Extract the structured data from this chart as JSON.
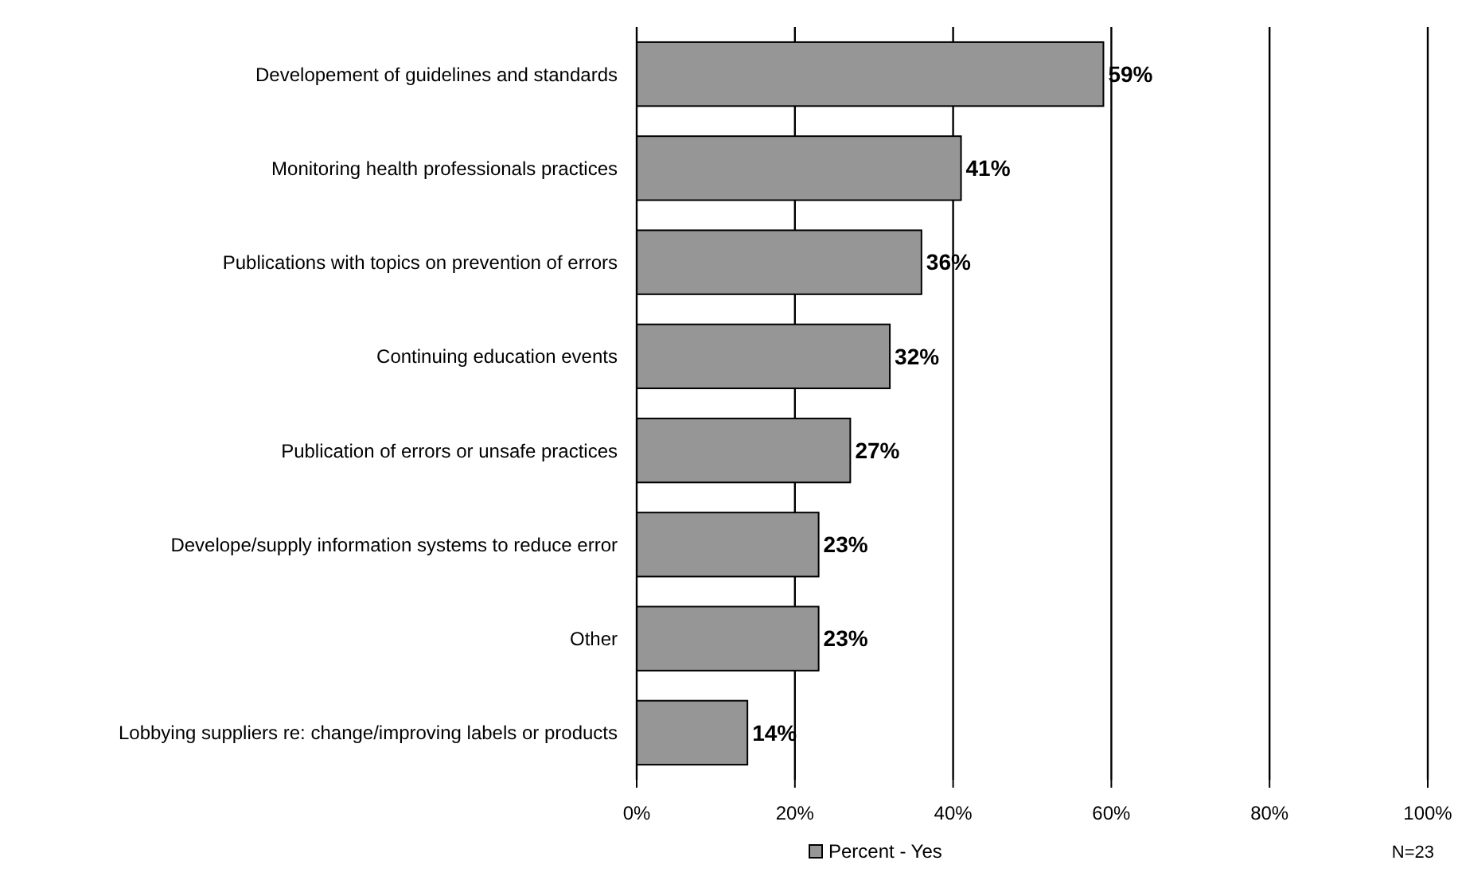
{
  "chart_data": {
    "type": "bar",
    "orientation": "horizontal",
    "categories": [
      "Developement of guidelines and standards",
      "Monitoring health professionals practices",
      "Publications with topics on prevention of errors",
      "Continuing education events",
      "Publication of errors or unsafe practices",
      "Develope/supply information systems to reduce error",
      "Other",
      "Lobbying suppliers re: change/improving labels or products"
    ],
    "series": [
      {
        "name": "Percent - Yes",
        "color": "#969696",
        "values": [
          59,
          41,
          36,
          32,
          27,
          23,
          23,
          14
        ],
        "value_labels": [
          "59%",
          "41%",
          "36%",
          "32%",
          "27%",
          "23%",
          "23%",
          "14%"
        ]
      }
    ],
    "xlim": [
      0,
      100
    ],
    "xticks": [
      {
        "value": 0,
        "label": "0%"
      },
      {
        "value": 20,
        "label": "20%"
      },
      {
        "value": 40,
        "label": "40%"
      },
      {
        "value": 60,
        "label": "60%"
      },
      {
        "value": 80,
        "label": "80%"
      },
      {
        "value": 100,
        "label": "100%"
      }
    ],
    "grid": "x",
    "legend": "bottom",
    "annotations": [
      "N=23"
    ]
  }
}
